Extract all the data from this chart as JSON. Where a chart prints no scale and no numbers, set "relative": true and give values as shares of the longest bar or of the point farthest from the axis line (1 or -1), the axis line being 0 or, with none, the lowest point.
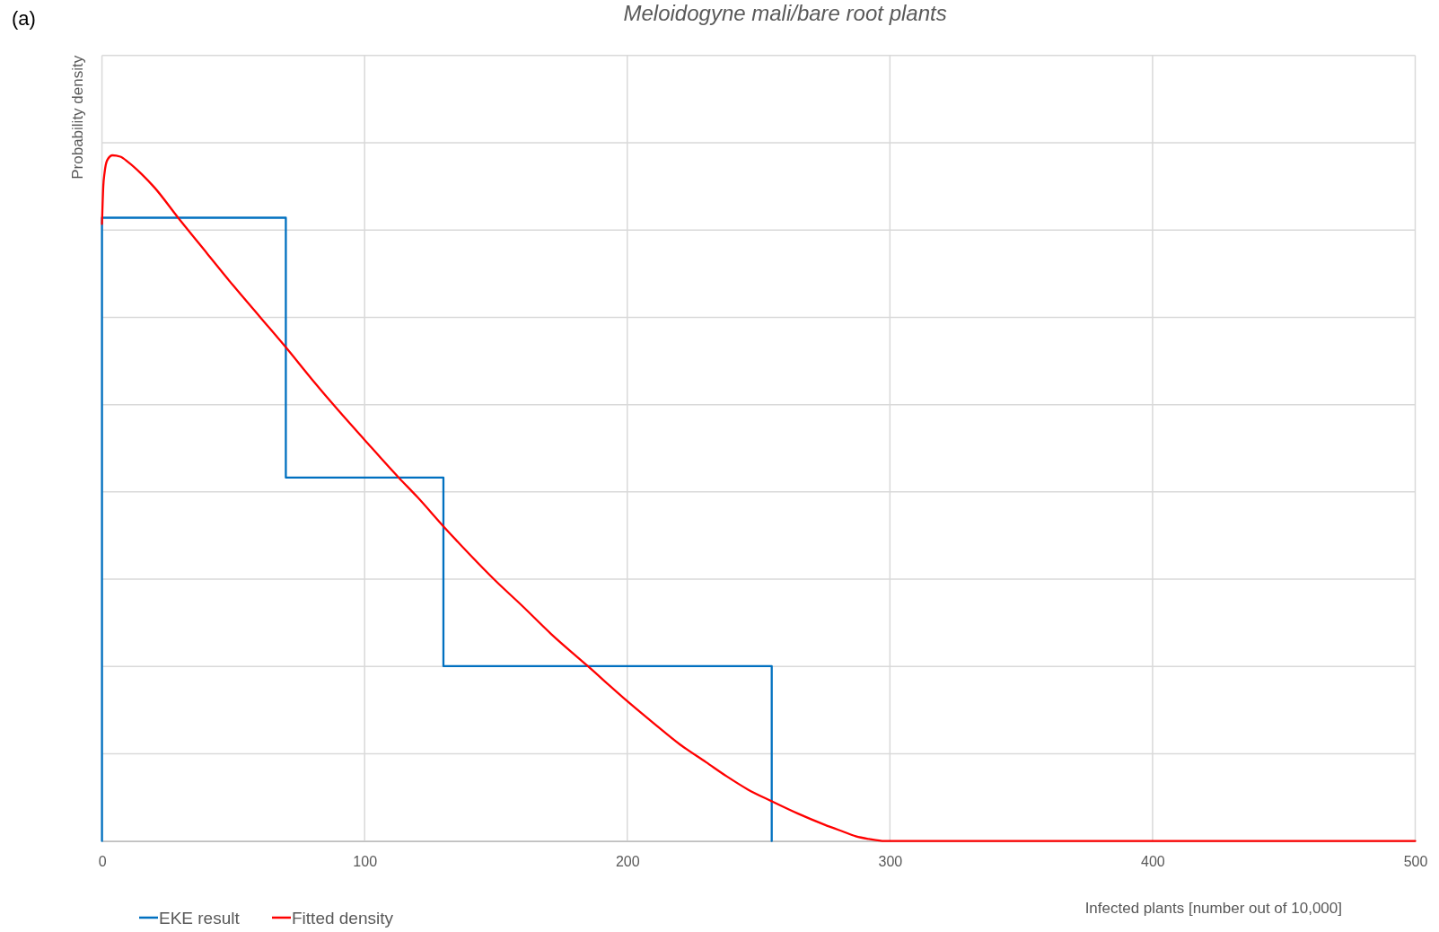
{
  "chart_data": {
    "type": "line",
    "title": "Meloidogyne mali/bare root plants",
    "xlabel": "Infected plants [number out of 10,000]",
    "ylabel": "Probability density",
    "annotations": [
      "(a)"
    ],
    "relative": true,
    "xlim": [
      0,
      500
    ],
    "xticks": [
      0,
      100,
      200,
      300,
      400,
      500
    ],
    "grid": true,
    "legend": "bottom left",
    "series": [
      {
        "name": "EKE result",
        "type": "step",
        "color": "#0070c0",
        "x": [
          0,
          0,
          70,
          130,
          255
        ],
        "values": [
          0,
          0.909,
          0.53,
          0.255,
          0
        ]
      },
      {
        "name": "Fitted density",
        "type": "line",
        "color": "#ff0000",
        "x": [
          0,
          0.5,
          1,
          2,
          4,
          7,
          10,
          15,
          20,
          29,
          40,
          50,
          60,
          70,
          80,
          90,
          100,
          113,
          120,
          130,
          140,
          150,
          160,
          171,
          185,
          200,
          210,
          220,
          230,
          238,
          246,
          255,
          265,
          275,
          282,
          287,
          292,
          298,
          500
        ],
        "values": [
          0.9,
          0.955,
          0.975,
          0.993,
          1,
          0.998,
          0.99,
          0.973,
          0.953,
          0.909,
          0.857,
          0.81,
          0.765,
          0.72,
          0.673,
          0.628,
          0.585,
          0.53,
          0.502,
          0.459,
          0.418,
          0.379,
          0.343,
          0.302,
          0.255,
          0.204,
          0.172,
          0.141,
          0.115,
          0.094,
          0.075,
          0.058,
          0.04,
          0.024,
          0.014,
          0.007,
          0.003,
          0,
          0
        ]
      }
    ]
  }
}
